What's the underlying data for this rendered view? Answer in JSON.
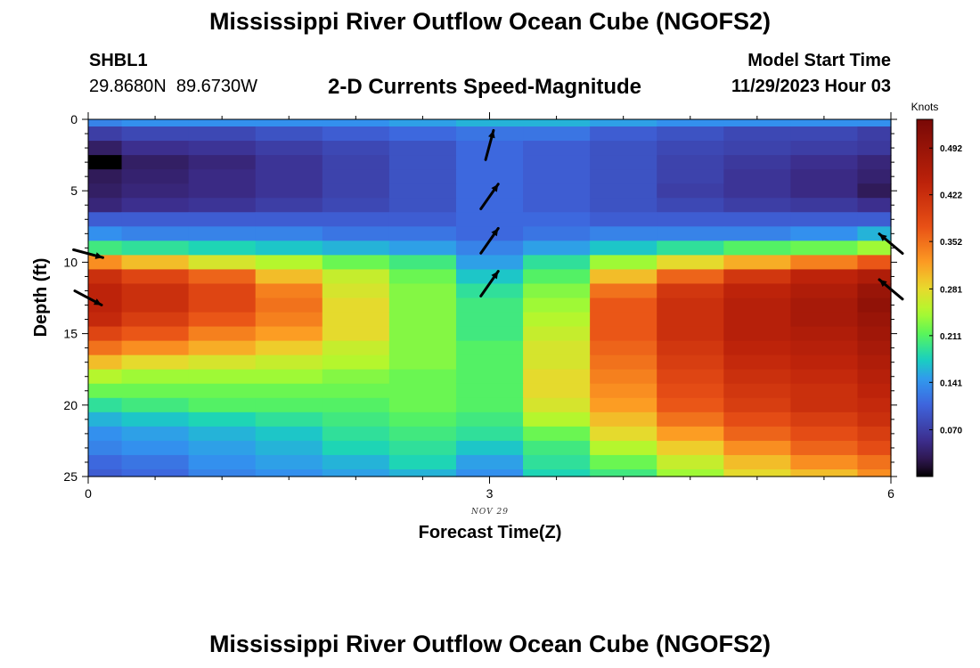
{
  "header": {
    "title": "Mississippi River Outflow Ocean Cube (NGOFS2)",
    "station": "SHBL1",
    "coords": "29.8680N  89.6730W",
    "subtitle": "2-D Currents Speed-Magnitude",
    "model_start_label": "Model Start Time",
    "model_start_value": "11/29/2023 Hour 03"
  },
  "footer": {
    "title": "Mississippi River Outflow Ocean Cube (NGOFS2)"
  },
  "chart_data": {
    "type": "heatmap",
    "xlabel": "Forecast Time(Z)",
    "ylabel": "Depth (ft)",
    "date_label": "NOV 29",
    "xlim": [
      0,
      6
    ],
    "ylim": [
      0,
      25
    ],
    "y_inverted": true,
    "x_ticks": [
      0,
      3,
      6
    ],
    "y_ticks": [
      0,
      5,
      10,
      15,
      20,
      25
    ],
    "x_centers": [
      0,
      0.5,
      1,
      1.5,
      2,
      2.5,
      3,
      3.5,
      4,
      4.5,
      5,
      5.5,
      6
    ],
    "depth_edges": [
      0,
      0.5,
      1.5,
      2.5,
      3.5,
      4.5,
      5.5,
      6.5,
      7.5,
      8.5,
      9.5,
      10.5,
      11.5,
      12.5,
      13.5,
      14.5,
      15.5,
      16.5,
      17.5,
      18.5,
      19.5,
      20.5,
      21.5,
      22.5,
      23.5,
      24.5,
      25
    ],
    "values": [
      [
        0.13,
        0.14,
        0.14,
        0.14,
        0.14,
        0.15,
        0.16,
        0.16,
        0.15,
        0.14,
        0.14,
        0.14,
        0.14
      ],
      [
        0.07,
        0.08,
        0.08,
        0.09,
        0.1,
        0.11,
        0.12,
        0.12,
        0.1,
        0.09,
        0.08,
        0.08,
        0.07
      ],
      [
        0.035,
        0.055,
        0.06,
        0.07,
        0.08,
        0.09,
        0.11,
        0.1,
        0.09,
        0.08,
        0.075,
        0.07,
        0.065
      ],
      [
        0.0,
        0.035,
        0.045,
        0.06,
        0.075,
        0.09,
        0.11,
        0.1,
        0.09,
        0.075,
        0.065,
        0.055,
        0.045
      ],
      [
        0.03,
        0.04,
        0.05,
        0.06,
        0.075,
        0.09,
        0.11,
        0.1,
        0.09,
        0.075,
        0.06,
        0.05,
        0.04
      ],
      [
        0.035,
        0.045,
        0.05,
        0.06,
        0.075,
        0.09,
        0.11,
        0.1,
        0.09,
        0.07,
        0.06,
        0.05,
        0.03
      ],
      [
        0.045,
        0.055,
        0.06,
        0.07,
        0.08,
        0.09,
        0.11,
        0.1,
        0.09,
        0.08,
        0.07,
        0.065,
        0.055
      ],
      [
        0.1,
        0.1,
        0.1,
        0.1,
        0.1,
        0.1,
        0.11,
        0.11,
        0.1,
        0.1,
        0.1,
        0.1,
        0.1
      ],
      [
        0.14,
        0.13,
        0.13,
        0.13,
        0.12,
        0.12,
        0.11,
        0.12,
        0.13,
        0.13,
        0.13,
        0.14,
        0.16
      ],
      [
        0.2,
        0.19,
        0.18,
        0.17,
        0.16,
        0.15,
        0.13,
        0.15,
        0.17,
        0.19,
        0.21,
        0.22,
        0.24
      ],
      [
        0.33,
        0.3,
        0.27,
        0.25,
        0.22,
        0.2,
        0.15,
        0.19,
        0.24,
        0.28,
        0.31,
        0.34,
        0.37
      ],
      [
        0.42,
        0.39,
        0.36,
        0.3,
        0.26,
        0.22,
        0.17,
        0.21,
        0.3,
        0.36,
        0.41,
        0.44,
        0.46
      ],
      [
        0.44,
        0.42,
        0.39,
        0.34,
        0.27,
        0.23,
        0.19,
        0.23,
        0.35,
        0.41,
        0.44,
        0.46,
        0.49
      ],
      [
        0.44,
        0.42,
        0.39,
        0.35,
        0.28,
        0.23,
        0.2,
        0.24,
        0.37,
        0.42,
        0.45,
        0.47,
        0.5
      ],
      [
        0.43,
        0.4,
        0.37,
        0.34,
        0.28,
        0.23,
        0.2,
        0.25,
        0.37,
        0.42,
        0.45,
        0.47,
        0.49
      ],
      [
        0.39,
        0.37,
        0.34,
        0.32,
        0.28,
        0.23,
        0.2,
        0.26,
        0.37,
        0.42,
        0.45,
        0.46,
        0.48
      ],
      [
        0.35,
        0.33,
        0.31,
        0.29,
        0.26,
        0.23,
        0.21,
        0.27,
        0.36,
        0.41,
        0.44,
        0.45,
        0.47
      ],
      [
        0.3,
        0.28,
        0.27,
        0.26,
        0.25,
        0.23,
        0.21,
        0.27,
        0.35,
        0.4,
        0.43,
        0.44,
        0.46
      ],
      [
        0.25,
        0.24,
        0.24,
        0.24,
        0.23,
        0.22,
        0.21,
        0.28,
        0.34,
        0.39,
        0.42,
        0.43,
        0.45
      ],
      [
        0.22,
        0.22,
        0.22,
        0.22,
        0.22,
        0.22,
        0.21,
        0.28,
        0.33,
        0.38,
        0.41,
        0.42,
        0.44
      ],
      [
        0.19,
        0.2,
        0.21,
        0.21,
        0.21,
        0.22,
        0.21,
        0.27,
        0.32,
        0.37,
        0.4,
        0.42,
        0.43
      ],
      [
        0.16,
        0.17,
        0.18,
        0.19,
        0.2,
        0.21,
        0.2,
        0.25,
        0.3,
        0.35,
        0.38,
        0.4,
        0.42
      ],
      [
        0.14,
        0.15,
        0.16,
        0.17,
        0.19,
        0.2,
        0.19,
        0.22,
        0.28,
        0.32,
        0.36,
        0.38,
        0.4
      ],
      [
        0.13,
        0.14,
        0.15,
        0.16,
        0.18,
        0.19,
        0.17,
        0.2,
        0.25,
        0.29,
        0.33,
        0.36,
        0.38
      ],
      [
        0.11,
        0.12,
        0.14,
        0.15,
        0.16,
        0.18,
        0.15,
        0.19,
        0.22,
        0.26,
        0.3,
        0.33,
        0.35
      ],
      [
        0.1,
        0.11,
        0.13,
        0.14,
        0.15,
        0.16,
        0.14,
        0.18,
        0.2,
        0.24,
        0.28,
        0.3,
        0.33
      ]
    ],
    "vectors": [
      {
        "x": 0,
        "depth": 9.4,
        "angle_deg": -15
      },
      {
        "x": 0,
        "depth": 12.5,
        "angle_deg": -28
      },
      {
        "x": 3,
        "depth": 1.8,
        "angle_deg": 75
      },
      {
        "x": 3,
        "depth": 5.4,
        "angle_deg": 55
      },
      {
        "x": 3,
        "depth": 8.5,
        "angle_deg": 55
      },
      {
        "x": 3,
        "depth": 11.5,
        "angle_deg": 55
      },
      {
        "x": 6,
        "depth": 8.7,
        "angle_deg": 140
      },
      {
        "x": 6,
        "depth": 11.9,
        "angle_deg": 140
      }
    ],
    "colorbar": {
      "unit": "Knots",
      "min": 0.0,
      "max": 0.535,
      "tick_values": [
        0.07,
        0.141,
        0.211,
        0.281,
        0.352,
        0.422,
        0.492
      ],
      "tick_labels": [
        "0.070",
        "0.141",
        "0.211",
        "0.281",
        "0.352",
        "0.422",
        "0.492"
      ]
    }
  }
}
